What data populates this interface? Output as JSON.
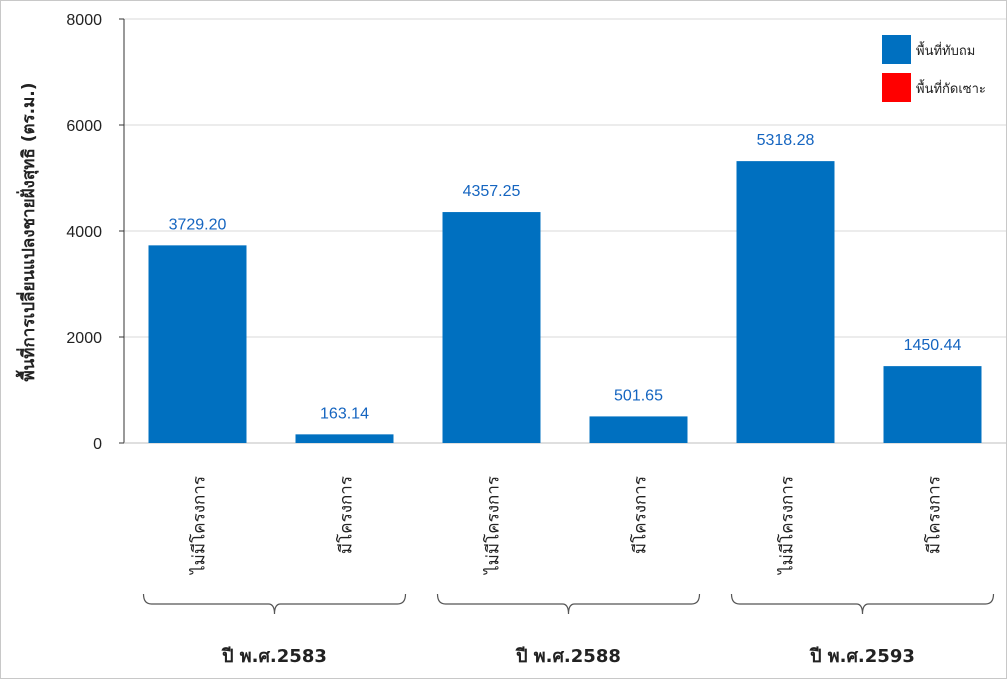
{
  "chart_data": {
    "type": "bar",
    "ylabel": "พื้นที่การเปลี่ยนแปลงชายฝั่งสุทธิ (ตร.ม.)",
    "ylim": [
      0,
      8000
    ],
    "yticks": [
      0,
      2000,
      4000,
      6000,
      8000
    ],
    "grid": "horizontal",
    "legend_position": "top-right",
    "categories": [
      "ไม่มีโครงการ",
      "มีโครงการ",
      "ไม่มีโครงการ",
      "มีโครงการ",
      "ไม่มีโครงการ",
      "มีโครงการ"
    ],
    "groups": [
      {
        "label": "ปี พ.ศ.2583",
        "categories": [
          0,
          1
        ]
      },
      {
        "label": "ปี พ.ศ.2588",
        "categories": [
          2,
          3
        ]
      },
      {
        "label": "ปี พ.ศ.2593",
        "categories": [
          4,
          5
        ]
      }
    ],
    "series": [
      {
        "name": "พื้นที่ทับถม",
        "color": "#0070c0",
        "values": [
          3729.2,
          163.14,
          4357.25,
          501.65,
          5318.28,
          1450.44
        ],
        "labels": [
          "3729.20",
          "163.14",
          "4357.25",
          "501.65",
          "5318.28",
          "1450.44"
        ]
      },
      {
        "name": "พื้นที่กัดเซาะ",
        "color": "#ff0000",
        "values": [
          0,
          0,
          0,
          0,
          0,
          0
        ]
      }
    ]
  }
}
